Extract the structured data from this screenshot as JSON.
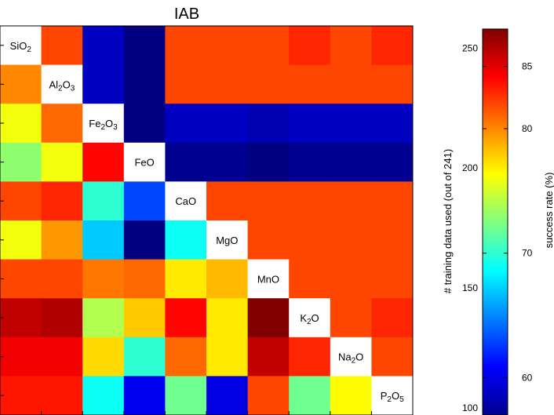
{
  "chart_data": {
    "type": "heatmap",
    "title": "IAB",
    "oxides": [
      {
        "base": "SiO",
        "sub": "2",
        "tail": ""
      },
      {
        "base": "Al",
        "sub": "2",
        "tail": "O",
        "sub2": "3"
      },
      {
        "base": "Fe",
        "sub": "2",
        "tail": "O",
        "sub2": "3"
      },
      {
        "base": "FeO",
        "sub": "",
        "tail": ""
      },
      {
        "base": "CaO",
        "sub": "",
        "tail": ""
      },
      {
        "base": "MgO",
        "sub": "",
        "tail": ""
      },
      {
        "base": "MnO",
        "sub": "",
        "tail": ""
      },
      {
        "base": "K",
        "sub": "2",
        "tail": "O"
      },
      {
        "base": "Na",
        "sub": "2",
        "tail": "O"
      },
      {
        "base": "P",
        "sub": "2",
        "tail": "O",
        "sub2": "5"
      }
    ],
    "diagonal": "white",
    "matrix": [
      [
        null,
        82,
        59,
        57,
        82,
        82,
        82,
        83,
        82,
        83
      ],
      [
        80,
        null,
        59,
        57,
        82,
        82,
        82,
        82,
        82,
        82
      ],
      [
        76,
        81,
        null,
        57,
        59,
        59,
        58.5,
        59,
        59,
        59
      ],
      [
        73,
        76,
        84,
        null,
        57.5,
        57.5,
        57,
        57.5,
        57.5,
        57.5
      ],
      [
        82,
        83,
        70,
        63,
        null,
        82,
        82,
        82,
        82,
        82
      ],
      [
        76,
        79.5,
        67,
        57,
        69,
        null,
        82,
        82,
        82,
        82
      ],
      [
        82,
        82,
        80.5,
        81,
        77,
        78.5,
        null,
        82,
        82,
        82
      ],
      [
        86,
        86.5,
        74,
        78,
        84,
        77,
        88,
        null,
        82,
        83
      ],
      [
        84.5,
        84.5,
        77.5,
        70,
        81,
        77,
        86,
        83,
        null,
        82
      ],
      [
        83.5,
        83.5,
        69,
        60.5,
        72,
        60,
        82,
        72,
        76.5,
        null
      ]
    ],
    "value_range": [
      57,
      88
    ],
    "colorbar": {
      "label": "success rate (%)",
      "ticks": [
        60,
        70,
        80,
        85
      ],
      "colormap": "jet"
    },
    "right_axis": {
      "label": "# training data used (out of 241)",
      "range": [
        97,
        258
      ],
      "ticks": [
        100,
        150,
        200,
        250
      ]
    }
  }
}
